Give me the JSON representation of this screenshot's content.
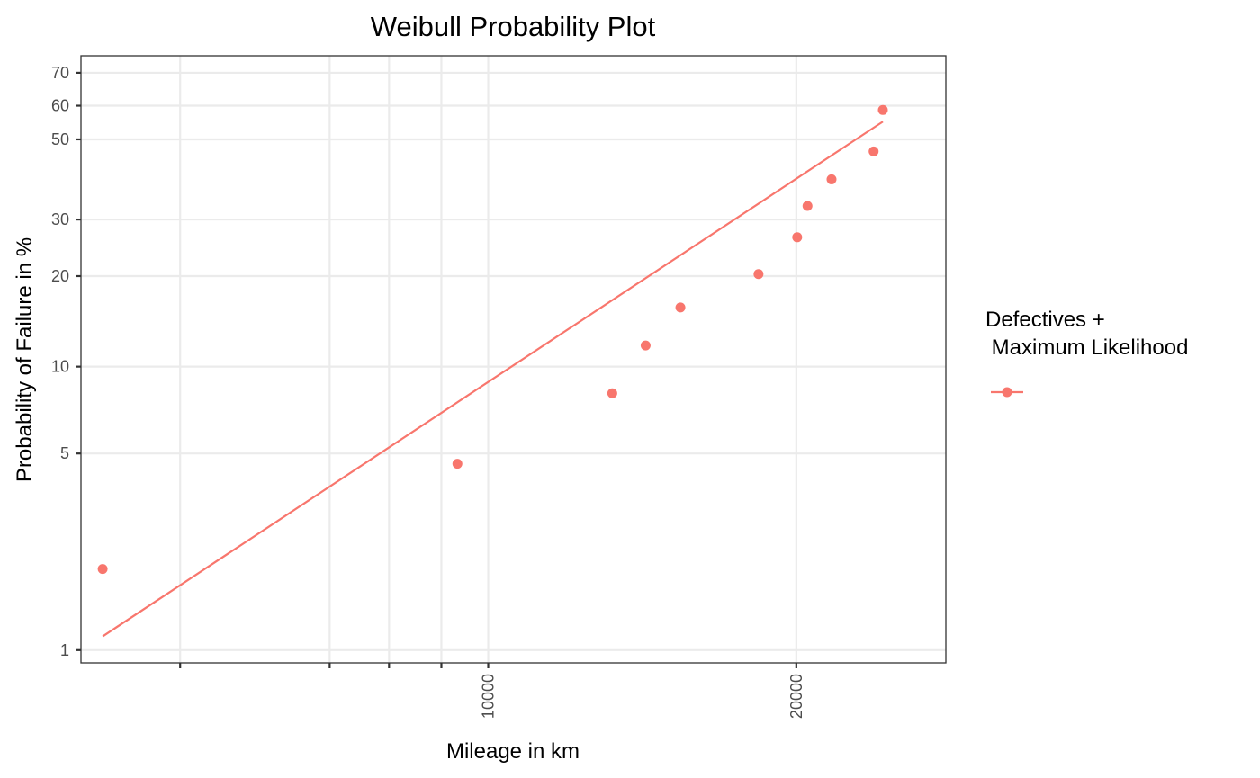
{
  "chart_data": {
    "type": "scatter",
    "title": "Weibull Probability Plot",
    "xlabel": "Mileage in km",
    "ylabel": "Probability of Failure in %",
    "x_scale": "log",
    "y_scale": "weibull",
    "xlim": [
      4000,
      28000
    ],
    "ylim": [
      0.9,
      75
    ],
    "x_ticks": [
      {
        "value": 10000,
        "label": "10000"
      },
      {
        "value": 20000,
        "label": "20000"
      }
    ],
    "x_minor_ticks": [
      5000,
      7000,
      8000,
      9000
    ],
    "x_grid": [
      5000,
      7000,
      8000,
      9000,
      10000,
      20000
    ],
    "y_ticks": [
      {
        "value": 1,
        "label": "1"
      },
      {
        "value": 5,
        "label": "5"
      },
      {
        "value": 10,
        "label": "10"
      },
      {
        "value": 20,
        "label": "20"
      },
      {
        "value": 30,
        "label": "30"
      },
      {
        "value": 50,
        "label": "50"
      },
      {
        "value": 60,
        "label": "60"
      },
      {
        "value": 70,
        "label": "70"
      }
    ],
    "grid": true,
    "legend": {
      "title_line1": "Defectives +",
      "title_line2": " Maximum Likelihood",
      "placement": "right"
    },
    "color": "#f8766d",
    "series": [
      {
        "kind": "points",
        "x": [
          4200,
          9330,
          13220,
          14250,
          15410,
          18370,
          20040,
          20510,
          21650,
          23800,
          24300
        ],
        "y": [
          1.95,
          4.6,
          8.1,
          11.8,
          15.8,
          20.3,
          26.5,
          32.9,
          39.2,
          46.6,
          58.7
        ]
      },
      {
        "kind": "fit-line",
        "x": [
          4200,
          24300
        ],
        "y": [
          1.12,
          55.2
        ]
      }
    ]
  }
}
